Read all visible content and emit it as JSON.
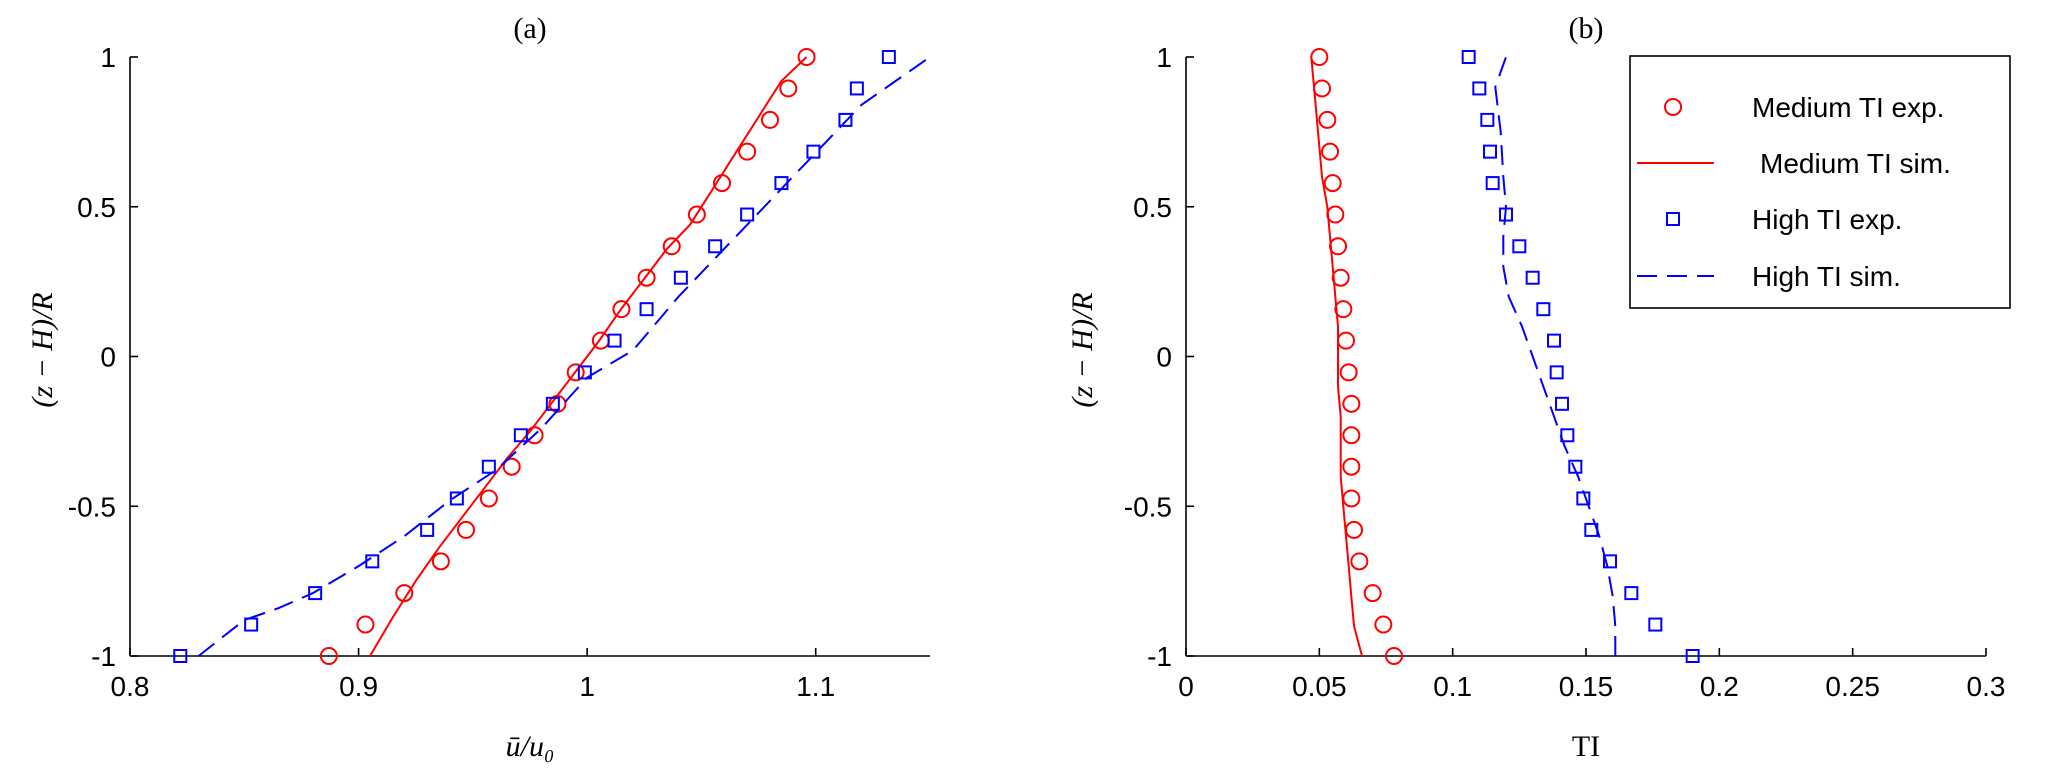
{
  "figure": {
    "legend": {
      "placement": "top-right",
      "entries": [
        "Medium TI exp.",
        "Medium TI sim.",
        "High TI exp.",
        "High TI sim."
      ]
    },
    "colors": {
      "medium": "#ff0000",
      "high": "#0000ff",
      "axis": "#000000"
    }
  },
  "chart_data": [
    {
      "type": "line",
      "title": "(a)",
      "xlabel": "ū/u₀",
      "ylabel": "(z − H)/R",
      "xlim": [
        0.8,
        1.15
      ],
      "ylim": [
        -1,
        1
      ],
      "xticks": [
        "0.8",
        "0.9",
        "1",
        "1.1"
      ],
      "yticks": [
        "-1",
        "-0.5",
        "0",
        "0.5",
        "1"
      ],
      "grid": false,
      "series": [
        {
          "name": "Medium TI exp.",
          "kind": "scatter",
          "marker": "circle",
          "color": "#ff0000",
          "x": [
            0.887,
            0.903,
            0.92,
            0.936,
            0.947,
            0.957,
            0.967,
            0.977,
            0.987,
            0.995,
            1.006,
            1.015,
            1.026,
            1.037,
            1.048,
            1.059,
            1.07,
            1.08,
            1.088,
            1.096
          ],
          "y": [
            -1.0,
            -0.895,
            -0.79,
            -0.684,
            -0.579,
            -0.474,
            -0.368,
            -0.263,
            -0.158,
            -0.053,
            0.053,
            0.158,
            0.263,
            0.368,
            0.474,
            0.579,
            0.684,
            0.79,
            0.895,
            1.0
          ]
        },
        {
          "name": "Medium TI sim.",
          "kind": "line",
          "linestyle": "solid",
          "color": "#ff0000",
          "x": [
            0.905,
            0.915,
            0.925,
            0.935,
            0.945,
            0.955,
            0.965,
            0.975,
            0.985,
            0.995,
            1.005,
            1.015,
            1.025,
            1.035,
            1.045,
            1.055,
            1.065,
            1.075,
            1.085,
            1.096
          ],
          "y": [
            -1.0,
            -0.87,
            -0.75,
            -0.64,
            -0.54,
            -0.44,
            -0.34,
            -0.25,
            -0.15,
            -0.05,
            0.05,
            0.16,
            0.26,
            0.36,
            0.44,
            0.56,
            0.68,
            0.8,
            0.92,
            1.0
          ]
        },
        {
          "name": "High TI exp.",
          "kind": "scatter",
          "marker": "square",
          "color": "#0000ff",
          "x": [
            0.822,
            0.853,
            0.881,
            0.906,
            0.93,
            0.943,
            0.957,
            0.971,
            0.985,
            0.999,
            1.012,
            1.026,
            1.041,
            1.056,
            1.07,
            1.085,
            1.099,
            1.113,
            1.118,
            1.132
          ],
          "y": [
            -1.0,
            -0.895,
            -0.79,
            -0.684,
            -0.579,
            -0.474,
            -0.368,
            -0.263,
            -0.158,
            -0.053,
            0.053,
            0.158,
            0.263,
            0.368,
            0.474,
            0.579,
            0.684,
            0.79,
            0.895,
            1.0
          ]
        },
        {
          "name": "High TI sim.",
          "kind": "line",
          "linestyle": "dashed",
          "color": "#0000ff",
          "x": [
            0.83,
            0.84,
            0.85,
            0.865,
            0.88,
            0.9,
            0.92,
            0.94,
            0.96,
            0.98,
            1.0,
            1.02,
            1.04,
            1.06,
            1.08,
            1.1,
            1.12,
            1.15
          ],
          "y": [
            -1.0,
            -0.94,
            -0.88,
            -0.84,
            -0.79,
            -0.7,
            -0.6,
            -0.48,
            -0.38,
            -0.24,
            -0.07,
            0.02,
            0.2,
            0.36,
            0.52,
            0.68,
            0.84,
            1.0
          ]
        }
      ]
    },
    {
      "type": "line",
      "title": "(b)",
      "xlabel": "TI",
      "ylabel": "(z − H)/R",
      "xlim": [
        0,
        0.3
      ],
      "ylim": [
        -1,
        1
      ],
      "xticks": [
        "0",
        "0.05",
        "0.1",
        "0.15",
        "0.2",
        "0.25",
        "0.3"
      ],
      "yticks": [
        "-1",
        "-0.5",
        "0",
        "0.5",
        "1"
      ],
      "grid": false,
      "series": [
        {
          "name": "Medium TI exp.",
          "kind": "scatter",
          "marker": "circle",
          "color": "#ff0000",
          "x": [
            0.078,
            0.074,
            0.07,
            0.065,
            0.063,
            0.062,
            0.062,
            0.062,
            0.062,
            0.061,
            0.06,
            0.059,
            0.058,
            0.057,
            0.056,
            0.055,
            0.054,
            0.053,
            0.051,
            0.05
          ],
          "y": [
            -1.0,
            -0.895,
            -0.79,
            -0.684,
            -0.579,
            -0.474,
            -0.368,
            -0.263,
            -0.158,
            -0.053,
            0.053,
            0.158,
            0.263,
            0.368,
            0.474,
            0.579,
            0.684,
            0.79,
            0.895,
            1.0
          ]
        },
        {
          "name": "Medium TI sim.",
          "kind": "line",
          "linestyle": "solid",
          "color": "#ff0000",
          "x": [
            0.066,
            0.063,
            0.062,
            0.061,
            0.06,
            0.059,
            0.058,
            0.058,
            0.058,
            0.057,
            0.057,
            0.057,
            0.056,
            0.055,
            0.054,
            0.053,
            0.051,
            0.049,
            0.047
          ],
          "y": [
            -1.0,
            -0.9,
            -0.8,
            -0.7,
            -0.6,
            -0.5,
            -0.4,
            -0.3,
            -0.2,
            -0.1,
            0.0,
            0.1,
            0.2,
            0.3,
            0.4,
            0.5,
            0.6,
            0.8,
            1.0
          ]
        },
        {
          "name": "High TI exp.",
          "kind": "scatter",
          "marker": "square",
          "color": "#0000ff",
          "x": [
            0.19,
            0.176,
            0.167,
            0.159,
            0.152,
            0.149,
            0.146,
            0.143,
            0.141,
            0.139,
            0.138,
            0.134,
            0.13,
            0.125,
            0.12,
            0.115,
            0.114,
            0.113,
            0.11,
            0.106
          ],
          "y": [
            -1.0,
            -0.895,
            -0.79,
            -0.684,
            -0.579,
            -0.474,
            -0.368,
            -0.263,
            -0.158,
            -0.053,
            0.053,
            0.158,
            0.263,
            0.368,
            0.474,
            0.579,
            0.684,
            0.79,
            0.895,
            1.0
          ]
        },
        {
          "name": "High TI sim.",
          "kind": "line",
          "linestyle": "dashed",
          "color": "#0000ff",
          "x": [
            0.161,
            0.161,
            0.16,
            0.158,
            0.155,
            0.151,
            0.147,
            0.142,
            0.138,
            0.134,
            0.13,
            0.126,
            0.121,
            0.119,
            0.119,
            0.12,
            0.119,
            0.118,
            0.116,
            0.12
          ],
          "y": [
            -1.0,
            -0.9,
            -0.8,
            -0.7,
            -0.6,
            -0.5,
            -0.4,
            -0.3,
            -0.2,
            -0.1,
            0.0,
            0.1,
            0.2,
            0.3,
            0.4,
            0.5,
            0.6,
            0.75,
            0.9,
            1.0
          ]
        }
      ]
    }
  ]
}
